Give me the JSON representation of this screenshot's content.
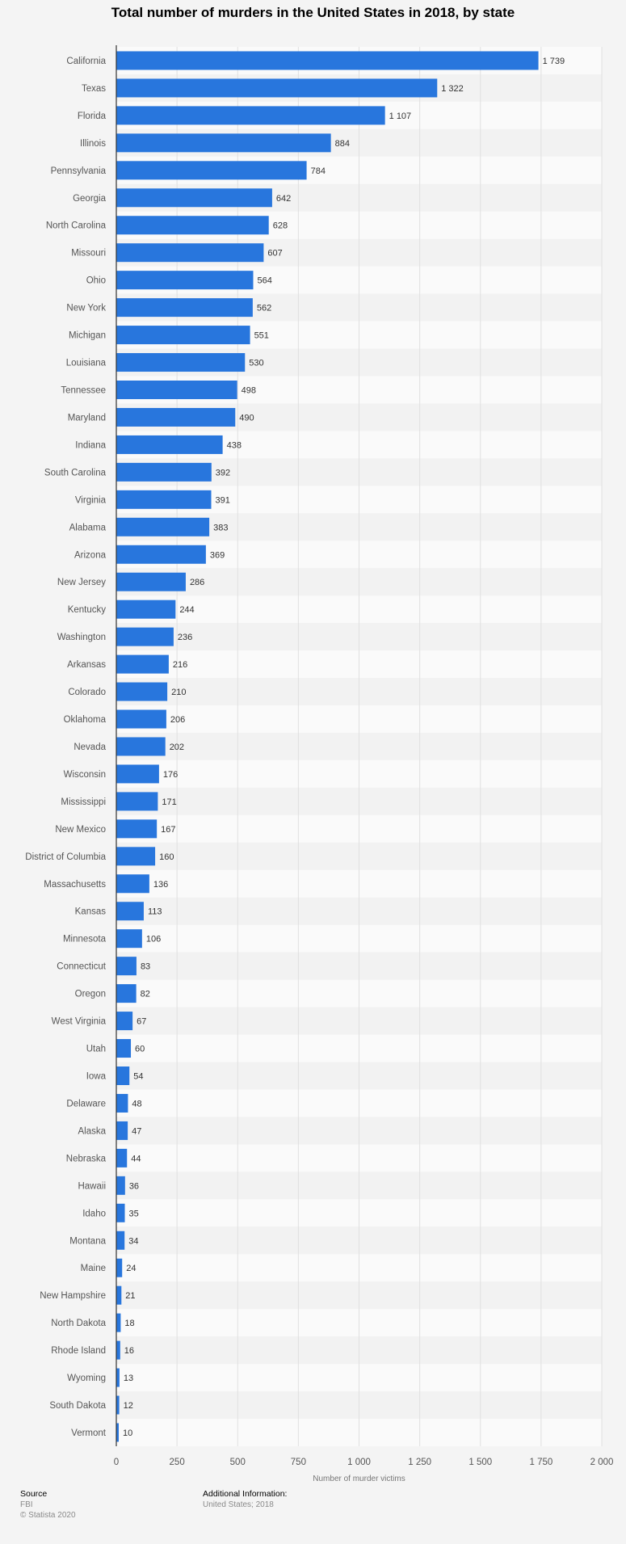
{
  "title": "Total number of murders in the United States in 2018, by state",
  "footer": {
    "source_label": "Source",
    "source_value": "FBI",
    "copyright": "© Statista 2020",
    "additional_label": "Additional Information:",
    "additional_value": "United States; 2018"
  },
  "colors": {
    "bar": "#2876dd",
    "band_light": "#fafafa",
    "band_dark": "#f2f2f2",
    "grid": "#e0e0e0"
  },
  "chart_data": {
    "type": "bar",
    "orientation": "horizontal",
    "xlabel": "Number of murder victims",
    "xlim": [
      0,
      2000
    ],
    "xticks": [
      0,
      250,
      500,
      750,
      1000,
      1250,
      1500,
      1750,
      2000
    ],
    "xtick_labels": [
      "0",
      "250",
      "500",
      "750",
      "1 000",
      "1 250",
      "1 500",
      "1 750",
      "2 000"
    ],
    "grid": true,
    "categories": [
      "California",
      "Texas",
      "Florida",
      "Illinois",
      "Pennsylvania",
      "Georgia",
      "North Carolina",
      "Missouri",
      "Ohio",
      "New York",
      "Michigan",
      "Louisiana",
      "Tennessee",
      "Maryland",
      "Indiana",
      "South Carolina",
      "Virginia",
      "Alabama",
      "Arizona",
      "New Jersey",
      "Kentucky",
      "Washington",
      "Arkansas",
      "Colorado",
      "Oklahoma",
      "Nevada",
      "Wisconsin",
      "Mississippi",
      "New Mexico",
      "District of Columbia",
      "Massachusetts",
      "Kansas",
      "Minnesota",
      "Connecticut",
      "Oregon",
      "West Virginia",
      "Utah",
      "Iowa",
      "Delaware",
      "Alaska",
      "Nebraska",
      "Hawaii",
      "Idaho",
      "Montana",
      "Maine",
      "New Hampshire",
      "North Dakota",
      "Rhode Island",
      "Wyoming",
      "South Dakota",
      "Vermont"
    ],
    "values": [
      1739,
      1322,
      1107,
      884,
      784,
      642,
      628,
      607,
      564,
      562,
      551,
      530,
      498,
      490,
      438,
      392,
      391,
      383,
      369,
      286,
      244,
      236,
      216,
      210,
      206,
      202,
      176,
      171,
      167,
      160,
      136,
      113,
      106,
      83,
      82,
      67,
      60,
      54,
      48,
      47,
      44,
      36,
      35,
      34,
      24,
      21,
      18,
      16,
      13,
      12,
      10
    ],
    "value_labels": [
      "1 739",
      "1 322",
      "1 107",
      "884",
      "784",
      "642",
      "628",
      "607",
      "564",
      "562",
      "551",
      "530",
      "498",
      "490",
      "438",
      "392",
      "391",
      "383",
      "369",
      "286",
      "244",
      "236",
      "216",
      "210",
      "206",
      "202",
      "176",
      "171",
      "167",
      "160",
      "136",
      "113",
      "106",
      "83",
      "82",
      "67",
      "60",
      "54",
      "48",
      "47",
      "44",
      "36",
      "35",
      "34",
      "24",
      "21",
      "18",
      "16",
      "13",
      "12",
      "10"
    ]
  }
}
